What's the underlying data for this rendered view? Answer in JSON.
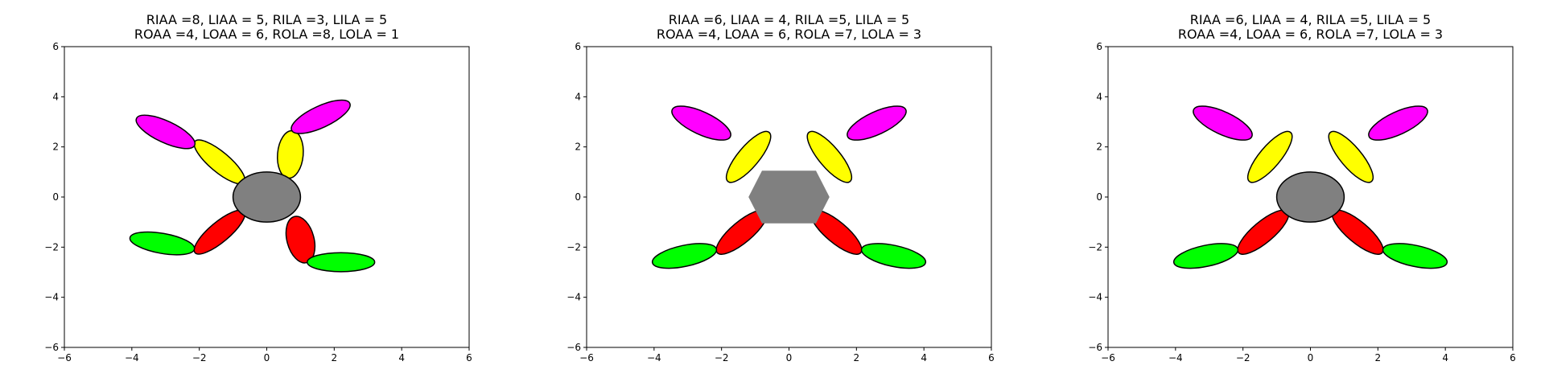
{
  "chart_data": [
    {
      "type": "other",
      "title_lines": [
        "RIAA =8, LIAA = 5, RILA =3, LILA = 5",
        "ROAA =4, LOAA = 6, ROLA =8, LOLA = 1"
      ],
      "xlim": [
        -6,
        6
      ],
      "ylim": [
        -6,
        6
      ],
      "xticks": [
        -6,
        -4,
        -2,
        0,
        2,
        4,
        6
      ],
      "yticks": [
        -6,
        -4,
        -2,
        0,
        2,
        4,
        6
      ],
      "xtick_labels": [
        "−6",
        "−4",
        "−2",
        "0",
        "2",
        "4",
        "6"
      ],
      "ytick_labels": [
        "−6",
        "−4",
        "−2",
        "0",
        "2",
        "4",
        "6"
      ],
      "grid": false,
      "body": {
        "shape": "ellipse",
        "cx": 0,
        "cy": 0,
        "rx": 1.0,
        "ry": 1.0,
        "color": "#808080"
      },
      "segments": [
        {
          "name": "right-inner-upper",
          "cx": 0.7,
          "cy": 1.7,
          "rx": 0.38,
          "ry": 0.95,
          "angle": -5,
          "color": "#ffff00"
        },
        {
          "name": "right-outer-upper",
          "cx": 1.6,
          "cy": 3.2,
          "rx": 0.95,
          "ry": 0.43,
          "angle": 25,
          "color": "#ff00ff"
        },
        {
          "name": "left-inner-upper",
          "cx": -1.4,
          "cy": 1.4,
          "rx": 0.95,
          "ry": 0.4,
          "angle": -40,
          "color": "#ffff00"
        },
        {
          "name": "left-outer-upper",
          "cx": -3.0,
          "cy": 2.6,
          "rx": 0.95,
          "ry": 0.43,
          "angle": -25,
          "color": "#ff00ff"
        },
        {
          "name": "right-inner-lower",
          "cx": 1.0,
          "cy": -1.7,
          "rx": 0.4,
          "ry": 0.95,
          "angle": 15,
          "color": "#ff0000"
        },
        {
          "name": "right-outer-lower",
          "cx": 2.2,
          "cy": -2.6,
          "rx": 1.0,
          "ry": 0.38,
          "angle": 0,
          "color": "#00ff00"
        },
        {
          "name": "left-inner-lower",
          "cx": -1.4,
          "cy": -1.4,
          "rx": 0.95,
          "ry": 0.4,
          "angle": 40,
          "color": "#ff0000"
        },
        {
          "name": "left-outer-lower",
          "cx": -3.1,
          "cy": -1.85,
          "rx": 0.97,
          "ry": 0.4,
          "angle": -10,
          "color": "#00ff00"
        }
      ]
    },
    {
      "type": "other",
      "title_lines": [
        "RIAA =6, LIAA = 4, RILA =5, LILA = 5",
        "ROAA =4, LOAA = 6, ROLA =7, LOLA = 3"
      ],
      "xlim": [
        -6,
        6
      ],
      "ylim": [
        -6,
        6
      ],
      "xticks": [
        -6,
        -4,
        -2,
        0,
        2,
        4,
        6
      ],
      "yticks": [
        -6,
        -4,
        -2,
        0,
        2,
        4,
        6
      ],
      "xtick_labels": [
        "−6",
        "−4",
        "−2",
        "0",
        "2",
        "4",
        "6"
      ],
      "ytick_labels": [
        "−6",
        "−4",
        "−2",
        "0",
        "2",
        "4",
        "6"
      ],
      "grid": false,
      "body": {
        "shape": "hexagon",
        "points": [
          [
            -1.2,
            0
          ],
          [
            -0.8,
            1.05
          ],
          [
            0.8,
            1.05
          ],
          [
            1.2,
            0
          ],
          [
            0.8,
            -1.05
          ],
          [
            -0.8,
            -1.05
          ]
        ],
        "color": "#808080"
      },
      "segments": [
        {
          "name": "right-inner-upper",
          "cx": 1.2,
          "cy": 1.6,
          "rx": 0.95,
          "ry": 0.42,
          "angle": -50,
          "color": "#ffff00"
        },
        {
          "name": "right-outer-upper",
          "cx": 2.6,
          "cy": 2.95,
          "rx": 0.95,
          "ry": 0.45,
          "angle": 25,
          "color": "#ff00ff"
        },
        {
          "name": "left-inner-upper",
          "cx": -1.2,
          "cy": 1.6,
          "rx": 0.95,
          "ry": 0.42,
          "angle": 50,
          "color": "#ffff00"
        },
        {
          "name": "left-outer-upper",
          "cx": -2.6,
          "cy": 2.95,
          "rx": 0.95,
          "ry": 0.45,
          "angle": -25,
          "color": "#ff00ff"
        },
        {
          "name": "right-inner-lower",
          "cx": 1.4,
          "cy": -1.4,
          "rx": 0.95,
          "ry": 0.42,
          "angle": -40,
          "color": "#ff0000"
        },
        {
          "name": "right-outer-lower",
          "cx": 3.1,
          "cy": -2.35,
          "rx": 0.97,
          "ry": 0.42,
          "angle": -12,
          "color": "#00ff00"
        },
        {
          "name": "left-inner-lower",
          "cx": -1.4,
          "cy": -1.4,
          "rx": 0.95,
          "ry": 0.42,
          "angle": 40,
          "color": "#ff0000"
        },
        {
          "name": "left-outer-lower",
          "cx": -3.1,
          "cy": -2.35,
          "rx": 0.97,
          "ry": 0.42,
          "angle": 12,
          "color": "#00ff00"
        }
      ]
    },
    {
      "type": "other",
      "title_lines": [
        "RIAA =6, LIAA = 4, RILA =5, LILA = 5",
        "ROAA =4, LOAA = 6, ROLA =7, LOLA = 3"
      ],
      "xlim": [
        -6,
        6
      ],
      "ylim": [
        -6,
        6
      ],
      "xticks": [
        -6,
        -4,
        -2,
        0,
        2,
        4,
        6
      ],
      "yticks": [
        -6,
        -4,
        -2,
        0,
        2,
        4,
        6
      ],
      "xtick_labels": [
        "−6",
        "−4",
        "−2",
        "0",
        "2",
        "4",
        "6"
      ],
      "ytick_labels": [
        "−6",
        "−4",
        "−2",
        "0",
        "2",
        "4",
        "6"
      ],
      "grid": false,
      "body": {
        "shape": "ellipse",
        "cx": 0,
        "cy": 0,
        "rx": 1.0,
        "ry": 1.0,
        "color": "#808080"
      },
      "segments": [
        {
          "name": "right-inner-upper",
          "cx": 1.2,
          "cy": 1.6,
          "rx": 0.95,
          "ry": 0.42,
          "angle": -50,
          "color": "#ffff00"
        },
        {
          "name": "right-outer-upper",
          "cx": 2.6,
          "cy": 2.95,
          "rx": 0.95,
          "ry": 0.45,
          "angle": 25,
          "color": "#ff00ff"
        },
        {
          "name": "left-inner-upper",
          "cx": -1.2,
          "cy": 1.6,
          "rx": 0.95,
          "ry": 0.42,
          "angle": 50,
          "color": "#ffff00"
        },
        {
          "name": "left-outer-upper",
          "cx": -2.6,
          "cy": 2.95,
          "rx": 0.95,
          "ry": 0.45,
          "angle": -25,
          "color": "#ff00ff"
        },
        {
          "name": "right-inner-lower",
          "cx": 1.4,
          "cy": -1.4,
          "rx": 0.95,
          "ry": 0.42,
          "angle": -40,
          "color": "#ff0000"
        },
        {
          "name": "right-outer-lower",
          "cx": 3.1,
          "cy": -2.35,
          "rx": 0.97,
          "ry": 0.42,
          "angle": -12,
          "color": "#00ff00"
        },
        {
          "name": "left-inner-lower",
          "cx": -1.4,
          "cy": -1.4,
          "rx": 0.95,
          "ry": 0.42,
          "angle": 40,
          "color": "#ff0000"
        },
        {
          "name": "left-outer-lower",
          "cx": -3.1,
          "cy": -2.35,
          "rx": 0.97,
          "ry": 0.42,
          "angle": 12,
          "color": "#00ff00"
        }
      ]
    }
  ]
}
